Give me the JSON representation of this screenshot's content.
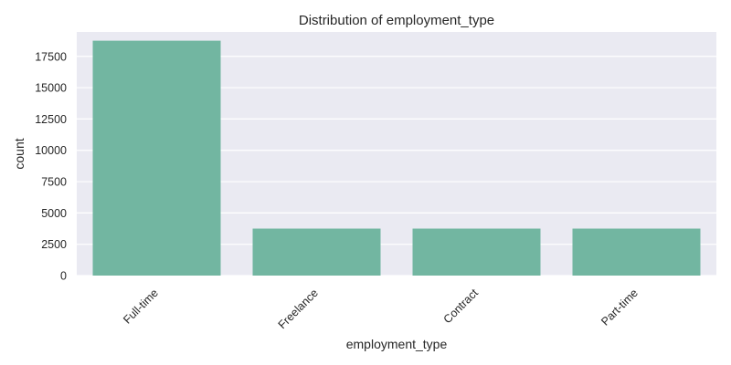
{
  "chart_data": {
    "type": "bar",
    "title": "Distribution of employment_type",
    "xlabel": "employment_type",
    "ylabel": "count",
    "categories": [
      "Full-time",
      "Freelance",
      "Contract",
      "Part-time"
    ],
    "values": [
      18750,
      3750,
      3750,
      3750
    ],
    "ylim": [
      0,
      19450
    ],
    "yticks": [
      0,
      2500,
      5000,
      7500,
      10000,
      12500,
      15000,
      17500
    ],
    "grid": true,
    "bar_color": "#72b6a1",
    "plot_background": "#eaeaf2",
    "grid_color": "#ffffff"
  }
}
